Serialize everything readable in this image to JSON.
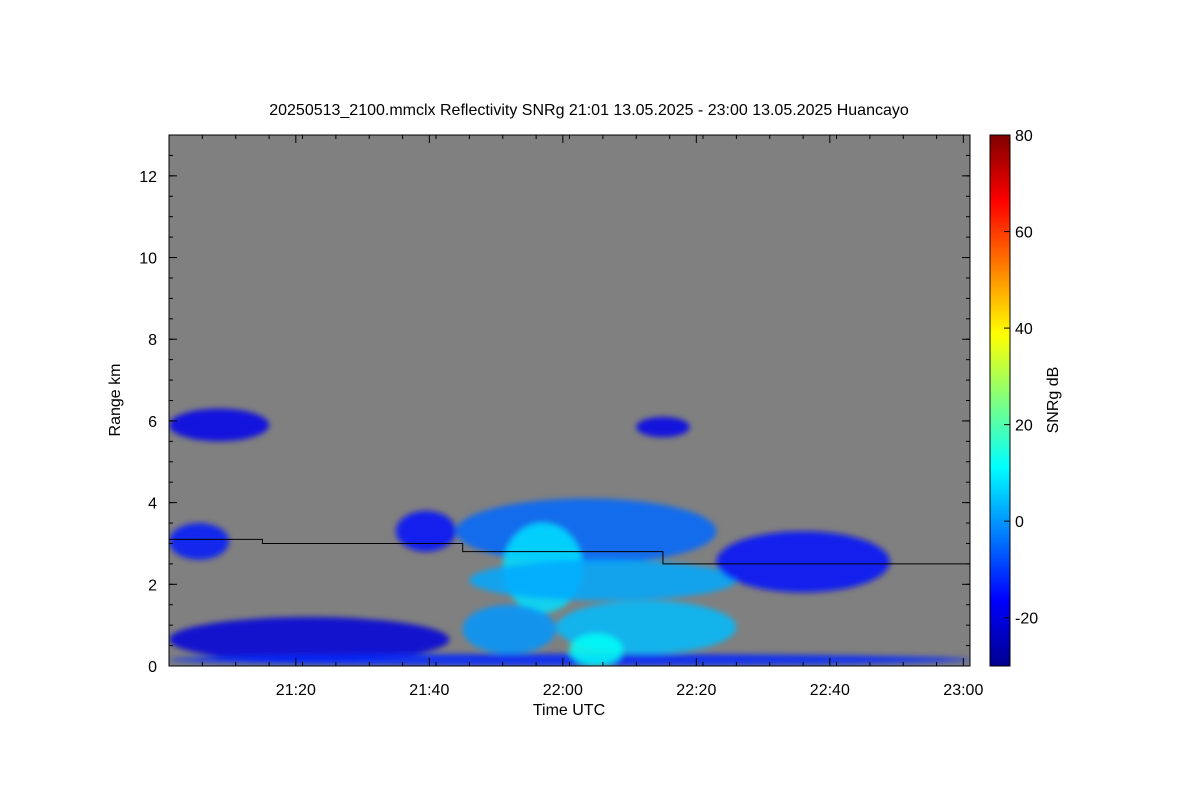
{
  "chart_data": {
    "type": "heatmap",
    "title": "20250513_2100.mmclx Reflectivity SNRg   21:01 13.05.2025 - 23:00 13.05.2025 Huancayo",
    "xlabel": "Time UTC",
    "ylabel": "Range km",
    "colorbar_label": "SNRg dB",
    "x_range_minutes": [
      0,
      120
    ],
    "ylim": [
      0,
      13
    ],
    "x_ticks": [
      {
        "label": "21:20",
        "value": 19
      },
      {
        "label": "21:40",
        "value": 39
      },
      {
        "label": "22:00",
        "value": 59
      },
      {
        "label": "22:20",
        "value": 79
      },
      {
        "label": "22:40",
        "value": 99
      },
      {
        "label": "23:00",
        "value": 119
      }
    ],
    "y_ticks": [
      0,
      2,
      4,
      6,
      8,
      10,
      12
    ],
    "colorbar_range": [
      -30,
      80
    ],
    "colorbar_ticks": [
      -20,
      0,
      20,
      40,
      60,
      80
    ],
    "background_color": "#808080",
    "line_color": "#000000",
    "line_series": [
      {
        "t": [
          0,
          14
        ],
        "y": 3.1
      },
      {
        "t": [
          14,
          44
        ],
        "y": 3.0
      },
      {
        "t": [
          44,
          74
        ],
        "y": 2.8
      },
      {
        "t": [
          74,
          120
        ],
        "y": 2.5
      }
    ],
    "echo_regions": [
      {
        "t0": 0,
        "t1": 15,
        "y0": 5.5,
        "y1": 6.3,
        "snr": -18
      },
      {
        "t0": 70,
        "t1": 78,
        "y0": 5.6,
        "y1": 6.1,
        "snr": -18
      },
      {
        "t0": 0,
        "t1": 9,
        "y0": 2.6,
        "y1": 3.5,
        "snr": -14
      },
      {
        "t0": 34,
        "t1": 43,
        "y0": 2.8,
        "y1": 3.8,
        "snr": -15
      },
      {
        "t0": 43,
        "t1": 82,
        "y0": 2.5,
        "y1": 4.1,
        "snr": -5
      },
      {
        "t0": 50,
        "t1": 62,
        "y0": 1.3,
        "y1": 3.5,
        "snr": 8
      },
      {
        "t0": 45,
        "t1": 85,
        "y0": 1.6,
        "y1": 2.6,
        "snr": 2
      },
      {
        "t0": 44,
        "t1": 58,
        "y0": 0.3,
        "y1": 1.5,
        "snr": 0
      },
      {
        "t0": 58,
        "t1": 85,
        "y0": 0.3,
        "y1": 1.6,
        "snr": 4
      },
      {
        "t0": 82,
        "t1": 108,
        "y0": 1.8,
        "y1": 3.3,
        "snr": -15
      },
      {
        "t0": 0,
        "t1": 42,
        "y0": 0.1,
        "y1": 1.2,
        "snr": -20
      },
      {
        "t0": 0,
        "t1": 120,
        "y0": 0.0,
        "y1": 0.3,
        "snr": -12
      },
      {
        "t0": 60,
        "t1": 68,
        "y0": 0.0,
        "y1": 0.8,
        "snr": 12
      }
    ]
  }
}
